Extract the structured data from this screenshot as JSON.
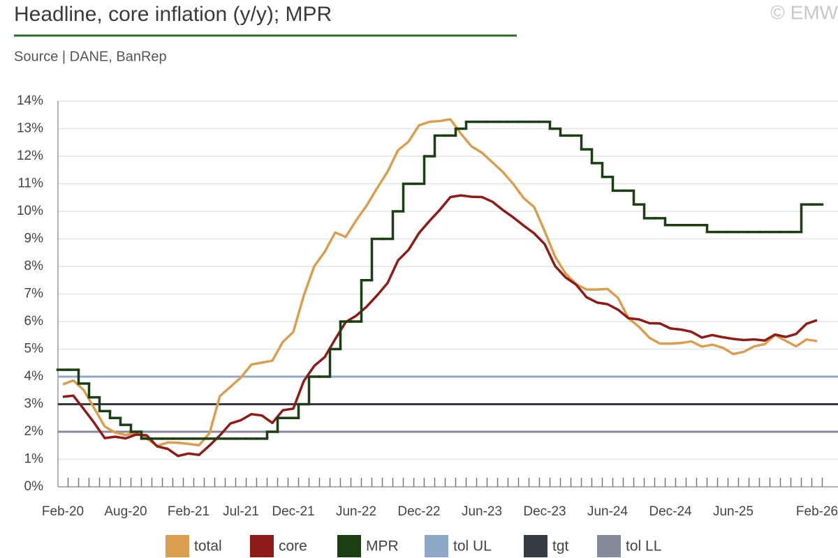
{
  "chart_data": {
    "type": "line",
    "title": "Headline, core inflation (y/y); MPR",
    "subtitle": "Source | DANE, BanRep",
    "watermark": "© EMW",
    "categories": [
      "Feb-20",
      null,
      null,
      null,
      null,
      null,
      "Aug-20",
      null,
      null,
      null,
      null,
      null,
      "Feb-21",
      null,
      null,
      null,
      null,
      "Jul-21",
      null,
      null,
      null,
      null,
      "Dec-21",
      null,
      null,
      null,
      null,
      null,
      "Jun-22",
      null,
      null,
      null,
      null,
      null,
      "Dec-22",
      null,
      null,
      null,
      null,
      null,
      "Jun-23",
      null,
      null,
      null,
      null,
      null,
      "Dec-23",
      null,
      null,
      null,
      null,
      null,
      "Jun-24",
      null,
      null,
      null,
      null,
      null,
      "Dec-24",
      null,
      null,
      null,
      null,
      null,
      "Jun-25",
      null,
      null,
      null,
      null,
      null,
      null,
      null,
      "Feb-26"
    ],
    "series": [
      {
        "name": "total",
        "color": "#d99e4e",
        "values": [
          3.72,
          3.86,
          3.51,
          2.85,
          2.19,
          1.97,
          1.88,
          1.97,
          1.75,
          1.49,
          1.61,
          1.6,
          1.56,
          1.51,
          1.95,
          3.3,
          3.63,
          3.97,
          4.44,
          4.51,
          4.58,
          5.26,
          5.62,
          6.94,
          8.01,
          8.53,
          9.23,
          9.07,
          9.67,
          10.21,
          10.84,
          11.44,
          12.22,
          12.53,
          13.12,
          13.25,
          13.28,
          13.34,
          12.82,
          12.36,
          12.13,
          11.78,
          11.43,
          10.99,
          10.48,
          10.15,
          9.28,
          8.35,
          7.74,
          7.36,
          7.16,
          7.16,
          7.18,
          6.86,
          6.12,
          5.81,
          5.41,
          5.2,
          5.2,
          5.22,
          5.28,
          5.09,
          5.16,
          5.05,
          4.82,
          4.9,
          5.1,
          5.18,
          5.51,
          5.3,
          5.1,
          5.35,
          5.29
        ]
      },
      {
        "name": "core",
        "color": "#8e1b16",
        "values": [
          3.27,
          3.31,
          2.82,
          2.32,
          1.77,
          1.82,
          1.76,
          1.9,
          1.87,
          1.47,
          1.38,
          1.12,
          1.21,
          1.16,
          1.5,
          1.87,
          2.3,
          2.42,
          2.64,
          2.59,
          2.32,
          2.78,
          2.84,
          3.84,
          4.39,
          4.71,
          5.36,
          5.98,
          6.21,
          6.54,
          6.95,
          7.4,
          8.22,
          8.6,
          9.21,
          9.65,
          10.06,
          10.52,
          10.58,
          10.53,
          10.52,
          10.35,
          10.05,
          9.78,
          9.48,
          9.2,
          8.81,
          8.01,
          7.6,
          7.34,
          6.88,
          6.69,
          6.63,
          6.43,
          6.12,
          6.08,
          5.94,
          5.93,
          5.75,
          5.71,
          5.63,
          5.42,
          5.51,
          5.43,
          5.37,
          5.33,
          5.35,
          5.31,
          5.53,
          5.44,
          5.55,
          5.92,
          6.05
        ]
      },
      {
        "name": "MPR",
        "color": "#1b3f12",
        "step": true,
        "values": [
          4.25,
          4.25,
          3.75,
          3.25,
          2.75,
          2.5,
          2.25,
          2.0,
          1.75,
          1.75,
          1.75,
          1.75,
          1.75,
          1.75,
          1.75,
          1.75,
          1.75,
          1.75,
          1.75,
          1.75,
          2.0,
          2.5,
          2.5,
          3.0,
          4.0,
          4.0,
          5.0,
          6.0,
          6.0,
          7.5,
          9.0,
          9.0,
          10.0,
          11.0,
          11.0,
          12.0,
          12.75,
          12.75,
          13.0,
          13.25,
          13.25,
          13.25,
          13.25,
          13.25,
          13.25,
          13.25,
          13.25,
          13.0,
          12.75,
          12.75,
          12.25,
          11.75,
          11.25,
          10.75,
          10.75,
          10.25,
          9.75,
          9.75,
          9.5,
          9.5,
          9.5,
          9.5,
          9.25,
          9.25,
          9.25,
          9.25,
          9.25,
          9.25,
          9.25,
          9.25,
          9.25,
          10.25,
          10.25
        ]
      }
    ],
    "hlines": [
      {
        "name": "tol UL",
        "color": "#8fa7cb",
        "value": 4
      },
      {
        "name": "tgt",
        "color": "#363a45",
        "value": 3
      },
      {
        "name": "tol LL",
        "color": "#878a9b",
        "value": 2
      }
    ],
    "ylim": [
      0,
      14
    ],
    "yticks": [
      {
        "value": 0,
        "label": "0%"
      },
      {
        "value": 1,
        "label": "1%"
      },
      {
        "value": 2,
        "label": "2%"
      },
      {
        "value": 3,
        "label": "3%"
      },
      {
        "value": 4,
        "label": "4%"
      },
      {
        "value": 5,
        "label": "5%"
      },
      {
        "value": 6,
        "label": "6%"
      },
      {
        "value": 7,
        "label": "7%"
      },
      {
        "value": 8,
        "label": "8%"
      },
      {
        "value": 9,
        "label": "9%"
      },
      {
        "value": 10,
        "label": "10%"
      },
      {
        "value": 11,
        "label": "11%"
      },
      {
        "value": 12,
        "label": "12%"
      },
      {
        "value": 13,
        "label": "13%"
      },
      {
        "value": 14,
        "label": "14%"
      }
    ],
    "grid": true
  }
}
